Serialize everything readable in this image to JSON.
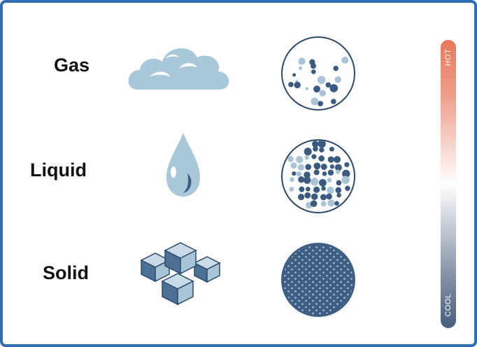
{
  "states": [
    {
      "label": "Gas"
    },
    {
      "label": "Liquid"
    },
    {
      "label": "Solid"
    }
  ],
  "scale": {
    "hot": "HOT",
    "cool": "COOL"
  }
}
